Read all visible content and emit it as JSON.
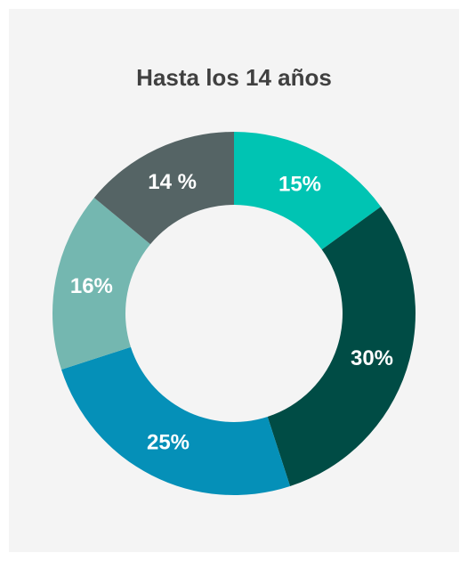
{
  "chart_data": {
    "type": "donut",
    "title": "Hasta los 14 años",
    "slices": [
      {
        "label": "15%",
        "value": 15,
        "color": "#00c4b3"
      },
      {
        "label": "30%",
        "value": 30,
        "color": "#004c45"
      },
      {
        "label": "25%",
        "value": 25,
        "color": "#0590b8"
      },
      {
        "label": "16%",
        "value": 16,
        "color": "#74b7b0"
      },
      {
        "label": "14 %",
        "value": 14,
        "color": "#556465"
      }
    ]
  }
}
